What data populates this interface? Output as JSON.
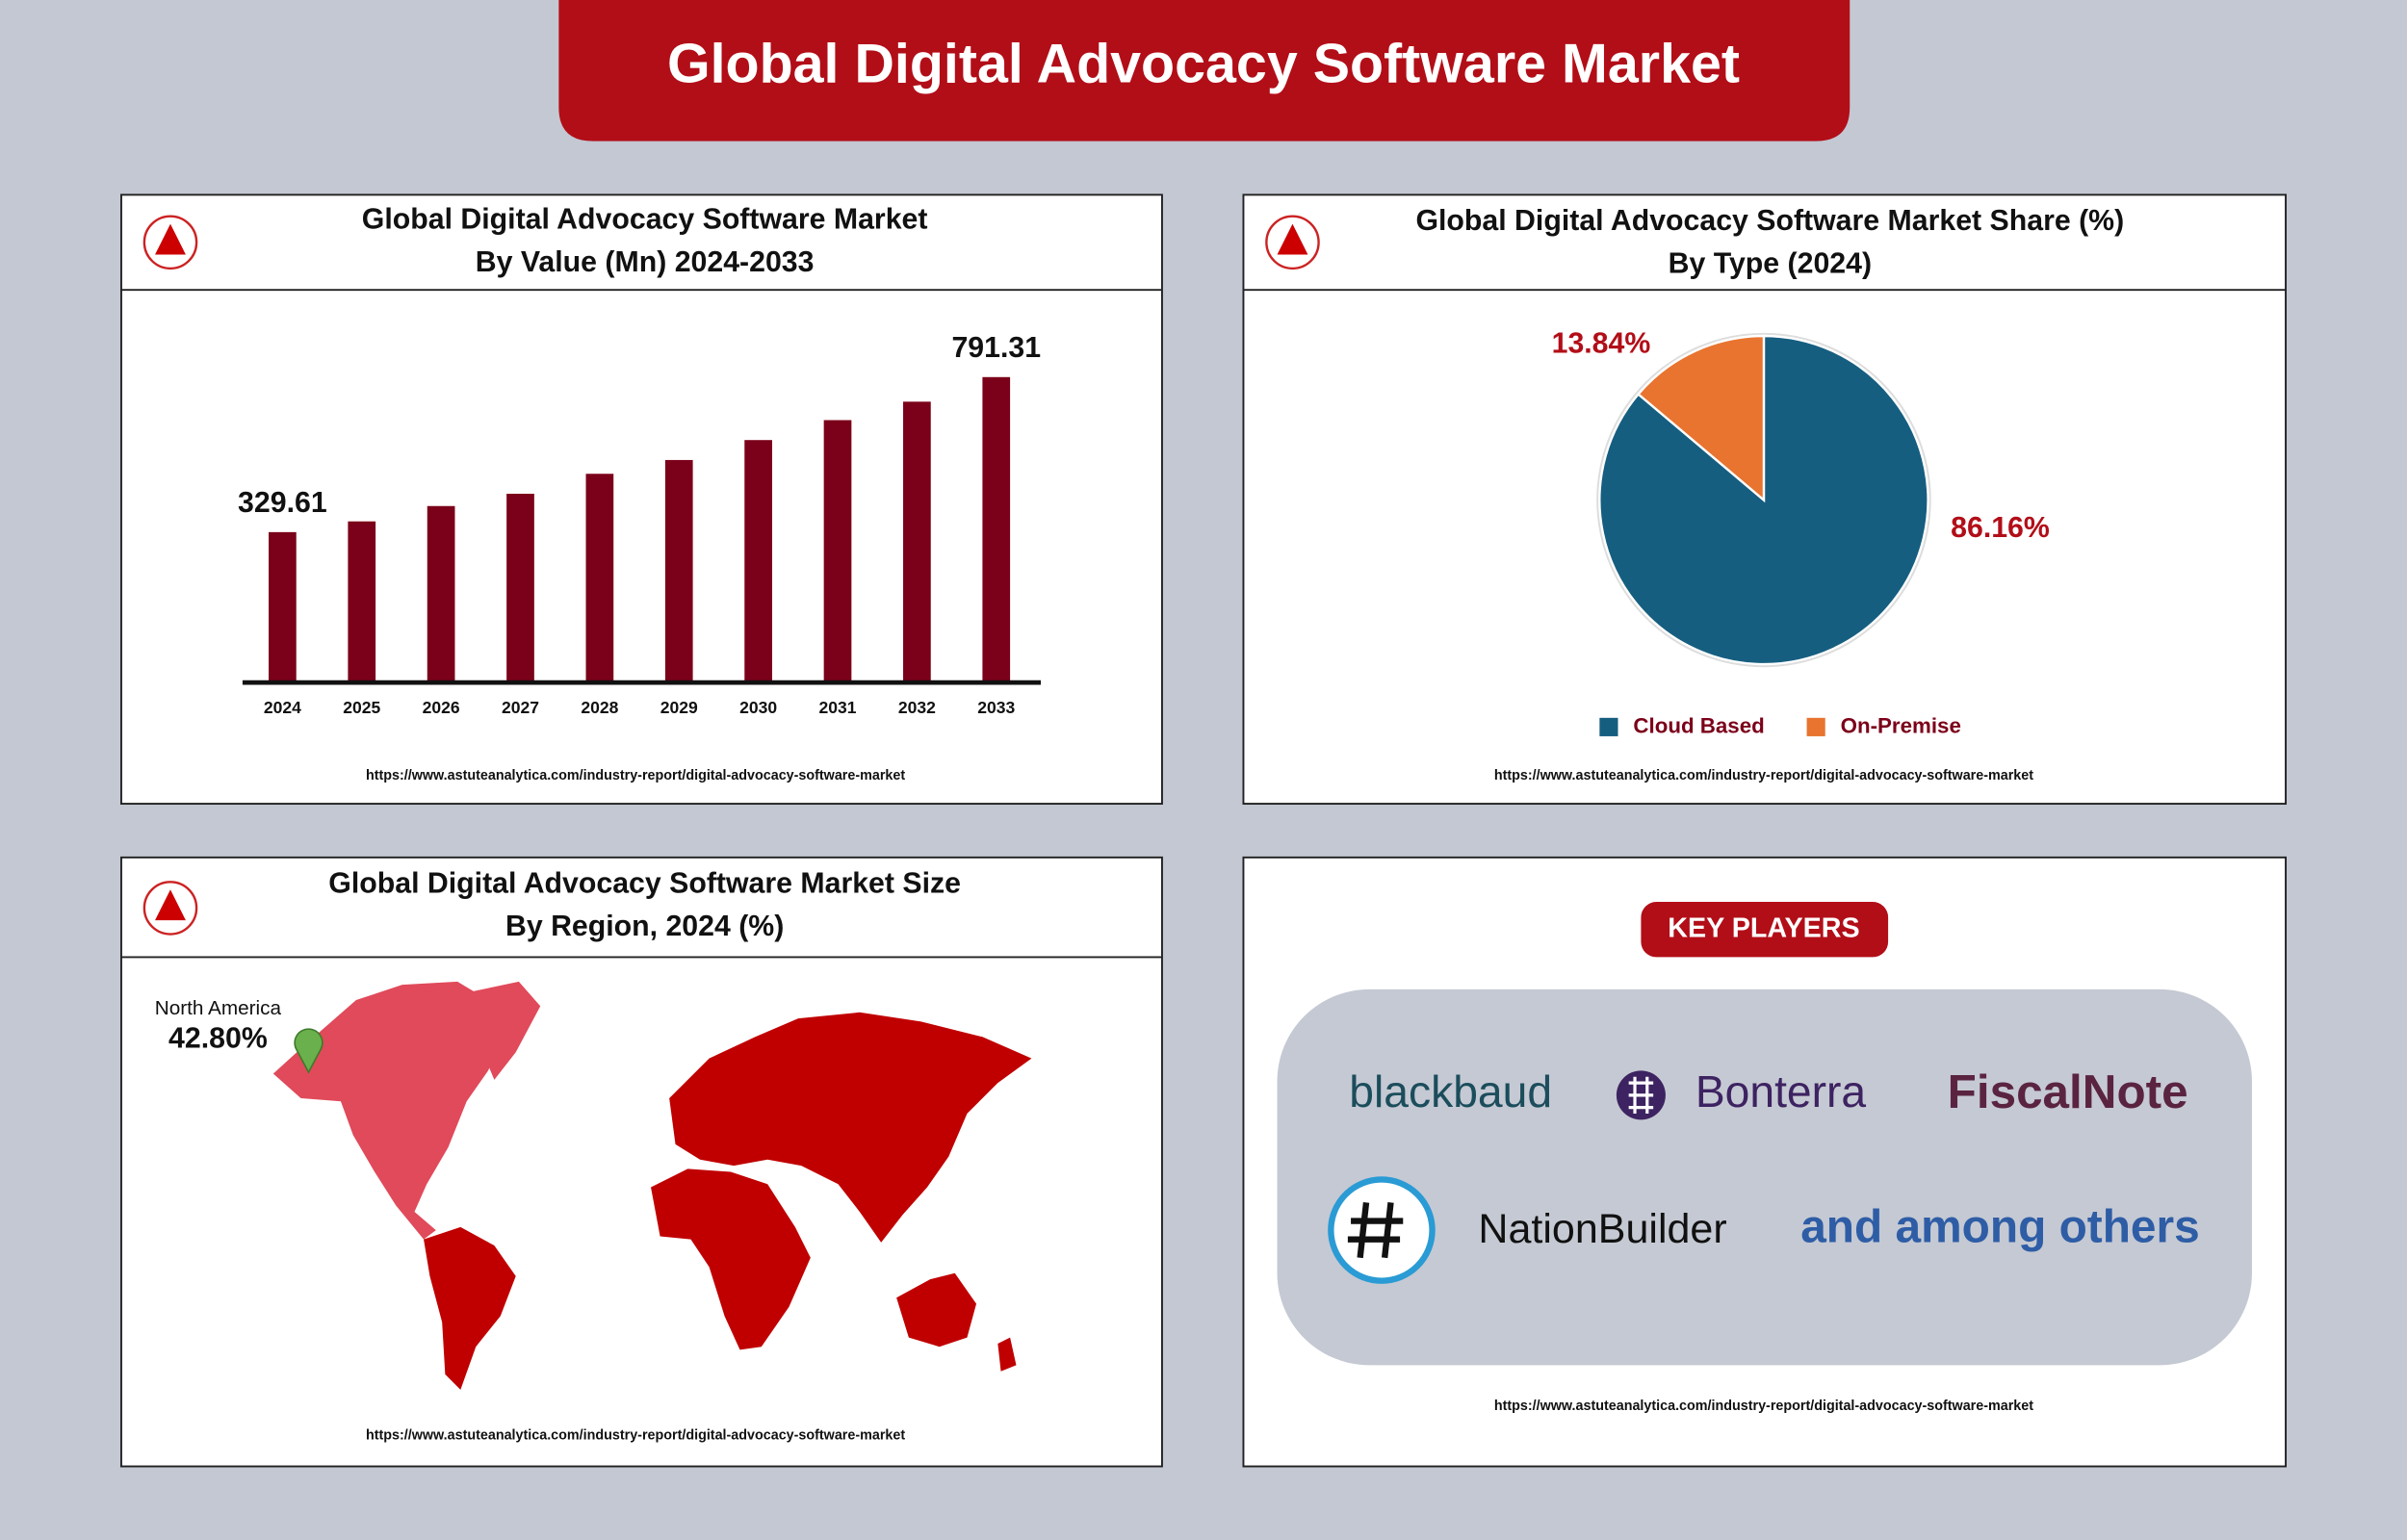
{
  "title": "Global Digital Advocacy Software Market",
  "chart_data": [
    {
      "type": "bar",
      "title": "Global Digital Advocacy Software Market",
      "subtitle": "By Value (Mn) 2024-2033",
      "categories": [
        "2024",
        "2025",
        "2026",
        "2027",
        "2028",
        "2029",
        "2030",
        "2031",
        "2032",
        "2033"
      ],
      "values": [
        329.61,
        361.6,
        407.3,
        443.9,
        503.3,
        544.4,
        603.8,
        663.2,
        718.1,
        791.31
      ],
      "value_labels": [
        "329.61",
        null,
        null,
        null,
        null,
        null,
        null,
        null,
        null,
        "791.31"
      ],
      "color": "#7b0019",
      "ylim": [
        -118.4,
        850
      ],
      "source": "https://www.astuteanalytica.com/industry-report/digital-advocacy-software-market"
    },
    {
      "type": "pie",
      "title": "Global Digital Advocacy Software Market Share (%)",
      "subtitle": "By Type (2024)",
      "categories": [
        "Cloud Based",
        "On-Premise"
      ],
      "values": [
        86.16,
        13.84
      ],
      "value_labels": [
        "86.16%",
        "13.84%"
      ],
      "colors": [
        "#155e80",
        "#e8742f"
      ],
      "source": "https://www.astuteanalytica.com/industry-report/digital-advocacy-software-market"
    }
  ],
  "map": {
    "title": "Global Digital Advocacy Software Market Size",
    "subtitle": "By Region, 2024 (%)",
    "region": "North America",
    "value": 42.8,
    "value_label": "42.80%",
    "source": "https://www.astuteanalytica.com/industry-report/digital-advocacy-software-market"
  },
  "key_players": {
    "heading": "KEY PLAYERS",
    "names": [
      "blackbaud",
      "Bonterra",
      "FiscalNote",
      "NationBuilder"
    ],
    "note": "and among others",
    "source": "https://www.astuteanalytica.com/industry-report/digital-advocacy-software-market"
  }
}
